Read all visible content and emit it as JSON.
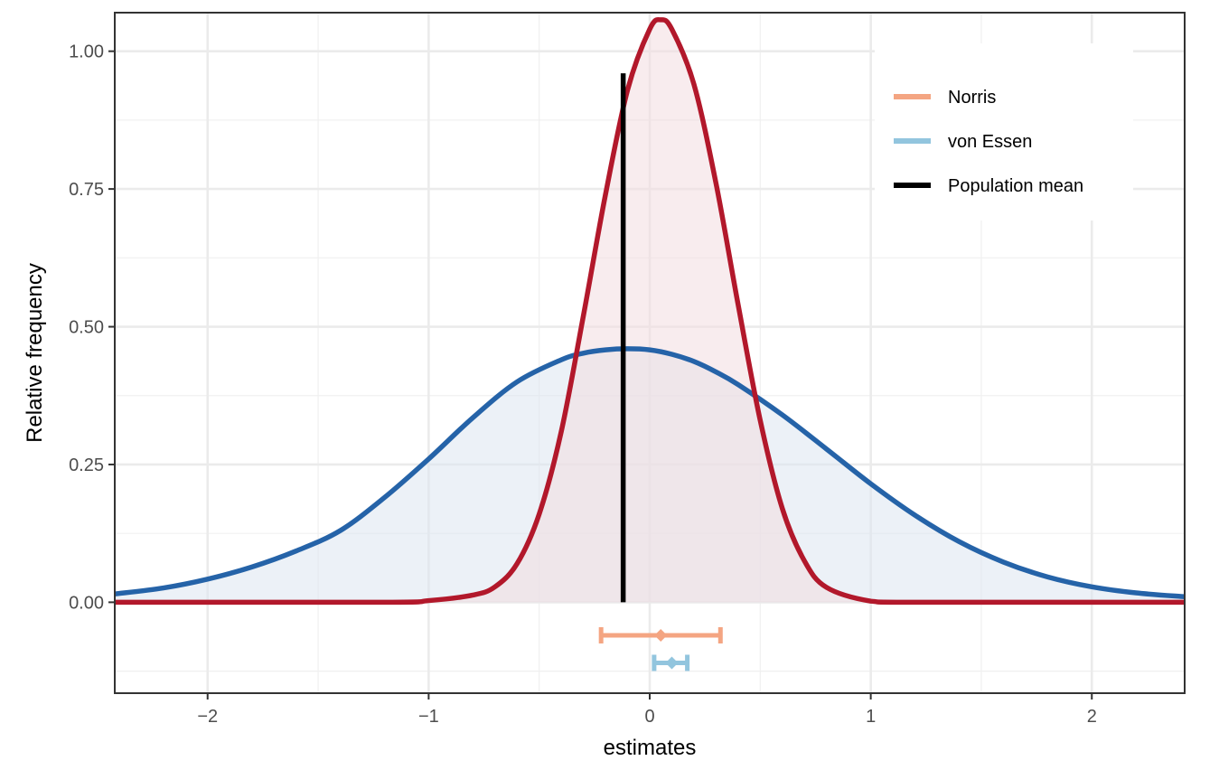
{
  "chart_data": {
    "type": "area",
    "xlabel": "estimates",
    "ylabel": "Relative frequency",
    "xlim": [
      -2.42,
      2.42
    ],
    "ylim": [
      -0.165,
      1.07
    ],
    "x_ticks": [
      -2,
      -1,
      0,
      1,
      2
    ],
    "x_tick_labels": [
      "−2",
      "−1",
      "0",
      "1",
      "2"
    ],
    "y_ticks": [
      0,
      0.25,
      0.5,
      0.75,
      1.0
    ],
    "y_tick_labels": [
      "0.00",
      "0.25",
      "0.50",
      "0.75",
      "1.00"
    ],
    "grid": true,
    "curves": [
      {
        "id": "wide",
        "color": "#2563A8",
        "fill": "#dce6f0",
        "x": [
          -2.42,
          -2.2,
          -2.0,
          -1.8,
          -1.6,
          -1.4,
          -1.2,
          -1.0,
          -0.8,
          -0.6,
          -0.4,
          -0.3,
          -0.2,
          -0.1,
          0.0,
          0.1,
          0.2,
          0.3,
          0.4,
          0.6,
          0.8,
          1.0,
          1.2,
          1.4,
          1.6,
          1.8,
          2.0,
          2.2,
          2.42
        ],
        "y": [
          0.015,
          0.026,
          0.042,
          0.064,
          0.093,
          0.13,
          0.19,
          0.26,
          0.335,
          0.4,
          0.44,
          0.452,
          0.458,
          0.46,
          0.458,
          0.45,
          0.437,
          0.418,
          0.395,
          0.34,
          0.278,
          0.215,
          0.158,
          0.11,
          0.073,
          0.046,
          0.028,
          0.017,
          0.01
        ]
      },
      {
        "id": "narrow",
        "color": "#B2182B",
        "fill": "#f2dde0",
        "x": [
          -2.42,
          -1.2,
          -1.0,
          -0.8,
          -0.7,
          -0.6,
          -0.5,
          -0.4,
          -0.3,
          -0.2,
          -0.1,
          0.0,
          0.05,
          0.1,
          0.2,
          0.3,
          0.4,
          0.5,
          0.6,
          0.7,
          0.8,
          1.0,
          1.2,
          2.42
        ],
        "y": [
          0.0,
          0.0,
          0.003,
          0.013,
          0.028,
          0.07,
          0.16,
          0.31,
          0.52,
          0.74,
          0.93,
          1.04,
          1.057,
          1.04,
          0.94,
          0.76,
          0.54,
          0.33,
          0.17,
          0.075,
          0.027,
          0.002,
          0.0,
          0.0
        ]
      }
    ],
    "reference_line": {
      "x": -0.12,
      "y_top": 0.96,
      "color": "#000000"
    },
    "intervals": [
      {
        "name": "Norris",
        "color": "#F4A582",
        "low": -0.22,
        "mid": 0.05,
        "high": 0.32,
        "y": -0.06
      },
      {
        "name": "von Essen",
        "color": "#92C5DE",
        "low": 0.02,
        "mid": 0.1,
        "high": 0.17,
        "y": -0.11
      }
    ],
    "legend": {
      "position": "top-right",
      "entries": [
        {
          "label": "Norris",
          "color": "#F4A582"
        },
        {
          "label": "von Essen",
          "color": "#92C5DE"
        },
        {
          "label": "Population mean",
          "color": "#000000"
        }
      ]
    }
  }
}
